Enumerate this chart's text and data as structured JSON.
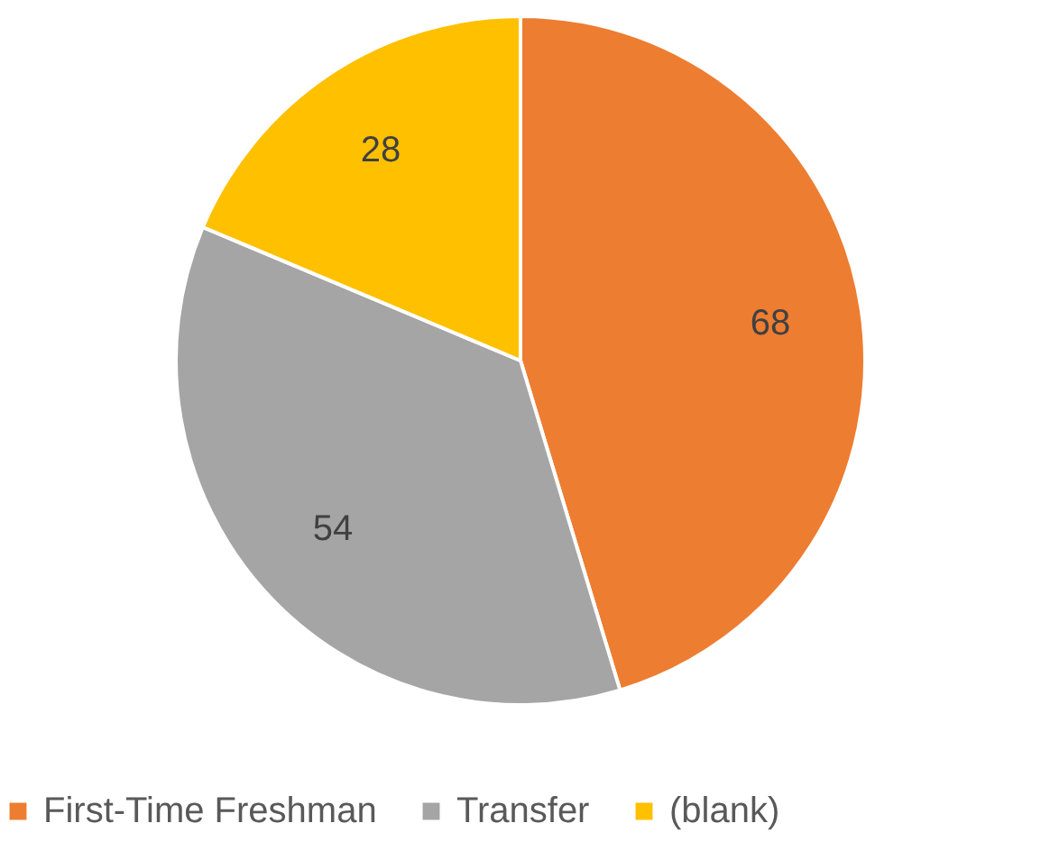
{
  "chart_data": {
    "type": "pie",
    "categories": [
      "First-Time Freshman",
      "Transfer",
      "(blank)"
    ],
    "values": [
      68,
      54,
      28
    ],
    "colors": [
      "#ed7d31",
      "#a5a5a5",
      "#ffc000"
    ],
    "data_labels": true,
    "legend": "bottom"
  }
}
